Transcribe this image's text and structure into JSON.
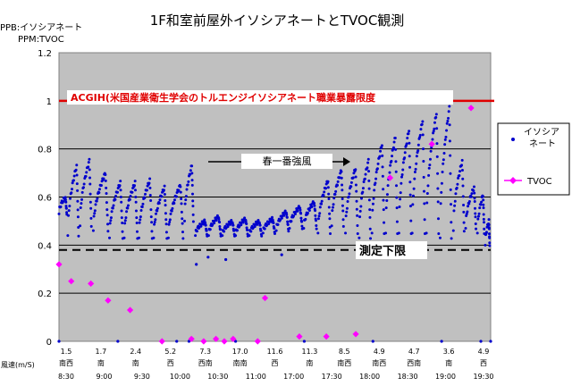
{
  "chart_data": {
    "type": "scatter",
    "title": "1F和室前屋外イソシアネートとTVOC観測",
    "unit_lines": [
      "PPB:イソシアネート",
      "PPM:TVOC"
    ],
    "xlabel": "風速(m/S)",
    "ylim": [
      0,
      1.2
    ],
    "y_ticks": [
      "0",
      "0.2",
      "0.4",
      "0.6",
      "0.8",
      "1",
      "1.2"
    ],
    "grid": "horizontal",
    "legend_position": "right",
    "plot_color": "#c0c0c0",
    "wind_speed_labels": [
      "1.5",
      "1.7",
      "2.4",
      "5.2",
      "7.3",
      "17.0",
      "11.6",
      "11.3",
      "8.5",
      "4.9",
      "4.7",
      "3.6",
      "4.9"
    ],
    "wind_direction_labels": [
      "南西",
      "南",
      "南",
      "西",
      "西南",
      "南南",
      "西",
      "南",
      "南西",
      "南西",
      "西南",
      "南",
      "西"
    ],
    "time_labels": [
      "8:30",
      "9:00",
      "9:30",
      "10:00",
      "10:30",
      "11:00",
      "17:00",
      "17:30",
      "18:00",
      "18:30",
      "19:00",
      "19:30"
    ],
    "thresholds": [
      {
        "label": "ACGIH(米国産業衛生学会のトルエンジイソシアネート職業暴露限度",
        "value": 1.0,
        "color": "#e00000"
      },
      {
        "label": "測定下限",
        "value": 0.38,
        "color": "#000000"
      }
    ],
    "annotation": "春一番強風",
    "series": [
      {
        "name": "イソシアネート",
        "color": "#0000cc",
        "marker": "dot",
        "cycles": [
          {
            "x": [
              0.0,
              1.6
            ],
            "start": 0.53,
            "peak": 0.6
          },
          {
            "x": [
              1.8,
              4.0
            ],
            "start": 0.44,
            "peak": 0.73
          },
          {
            "x": [
              4.3,
              6.6
            ],
            "start": 0.48,
            "peak": 0.75
          },
          {
            "x": [
              7.0,
              10.0
            ],
            "start": 0.46,
            "peak": 0.7
          },
          {
            "x": [
              10.3,
              13.0
            ],
            "start": 0.43,
            "peak": 0.66
          },
          {
            "x": [
              13.3,
              16.0
            ],
            "start": 0.43,
            "peak": 0.66
          },
          {
            "x": [
              16.3,
              19.0
            ],
            "start": 0.43,
            "peak": 0.67
          },
          {
            "x": [
              19.3,
              22.0
            ],
            "start": 0.43,
            "peak": 0.64
          },
          {
            "x": [
              22.3,
              25.3
            ],
            "start": 0.43,
            "peak": 0.65
          },
          {
            "x": [
              25.6,
              27.4
            ],
            "start": 0.5,
            "peak": 0.73
          },
          {
            "x": [
              27.8,
              30.2
            ],
            "start": 0.44,
            "peak": 0.5
          },
          {
            "x": [
              30.5,
              33.0
            ],
            "start": 0.44,
            "peak": 0.52
          },
          {
            "x": [
              33.3,
              35.8
            ],
            "start": 0.44,
            "peak": 0.5
          },
          {
            "x": [
              36.0,
              38.5
            ],
            "start": 0.44,
            "peak": 0.51
          },
          {
            "x": [
              38.8,
              41.3
            ],
            "start": 0.44,
            "peak": 0.5
          },
          {
            "x": [
              41.6,
              44.0
            ],
            "start": 0.45,
            "peak": 0.51
          },
          {
            "x": [
              44.3,
              46.8
            ],
            "start": 0.46,
            "peak": 0.54
          },
          {
            "x": [
              47.0,
              49.6
            ],
            "start": 0.47,
            "peak": 0.56
          },
          {
            "x": [
              49.9,
              52.5
            ],
            "start": 0.47,
            "peak": 0.58
          },
          {
            "x": [
              52.8,
              55.3
            ],
            "start": 0.45,
            "peak": 0.67
          },
          {
            "x": [
              55.6,
              58.0
            ],
            "start": 0.48,
            "peak": 0.71
          },
          {
            "x": [
              58.4,
              60.9
            ],
            "start": 0.45,
            "peak": 0.72
          },
          {
            "x": [
              61.2,
              63.5
            ],
            "start": 0.43,
            "peak": 0.75
          },
          {
            "x": [
              63.8,
              66.3
            ],
            "start": 0.45,
            "peak": 0.82
          },
          {
            "x": [
              66.6,
              69.0
            ],
            "start": 0.45,
            "peak": 0.85
          },
          {
            "x": [
              69.3,
              71.8
            ],
            "start": 0.45,
            "peak": 0.88
          },
          {
            "x": [
              72.0,
              74.6
            ],
            "start": 0.45,
            "peak": 0.92
          },
          {
            "x": [
              74.9,
              77.4
            ],
            "start": 0.45,
            "peak": 0.95
          },
          {
            "x": [
              77.7,
              80.0
            ],
            "start": 0.43,
            "peak": 0.97
          },
          {
            "x": [
              80.4,
              82.6
            ],
            "start": 0.46,
            "peak": 0.75
          },
          {
            "x": [
              82.9,
              85.0
            ],
            "start": 0.47,
            "peak": 0.64
          },
          {
            "x": [
              85.3,
              86.7
            ],
            "start": 0.45,
            "peak": 0.61
          },
          {
            "x": [
              86.9,
              87.8
            ],
            "start": 0.4,
            "peak": 0.5
          }
        ],
        "extra_points": [
          {
            "x": 28.0,
            "y": 0.32
          },
          {
            "x": 30.4,
            "y": 0.35
          },
          {
            "x": 34.0,
            "y": 0.34
          },
          {
            "x": 45.4,
            "y": 0.36
          },
          {
            "x": 0.0,
            "y": 0.0
          },
          {
            "x": 12.0,
            "y": 0.0
          },
          {
            "x": 24.0,
            "y": 0.0
          },
          {
            "x": 26.5,
            "y": 0.0
          },
          {
            "x": 36.0,
            "y": 0.0
          },
          {
            "x": 50.0,
            "y": 0.0
          },
          {
            "x": 64.0,
            "y": 0.0
          },
          {
            "x": 78.0,
            "y": 0.0
          },
          {
            "x": 86.0,
            "y": 0.0
          },
          {
            "x": 88.0,
            "y": 0.0
          }
        ]
      },
      {
        "name": "TVOC",
        "color": "#ff00ff",
        "marker": "diamond",
        "points": [
          {
            "x": 0.0,
            "y": 0.32
          },
          {
            "x": 2.5,
            "y": 0.25
          },
          {
            "x": 6.5,
            "y": 0.24
          },
          {
            "x": 10.0,
            "y": 0.17
          },
          {
            "x": 14.5,
            "y": 0.13
          },
          {
            "x": 21.0,
            "y": 0.0
          },
          {
            "x": 27.0,
            "y": 0.01
          },
          {
            "x": 29.5,
            "y": 0.0
          },
          {
            "x": 32.0,
            "y": 0.01
          },
          {
            "x": 33.7,
            "y": 0.0
          },
          {
            "x": 35.5,
            "y": 0.01
          },
          {
            "x": 40.5,
            "y": 0.0
          },
          {
            "x": 42.0,
            "y": 0.18
          },
          {
            "x": 49.0,
            "y": 0.02
          },
          {
            "x": 54.5,
            "y": 0.02
          },
          {
            "x": 60.5,
            "y": 0.03
          },
          {
            "x": 67.5,
            "y": 0.68
          },
          {
            "x": 76.0,
            "y": 0.82
          },
          {
            "x": 84.0,
            "y": 0.97
          }
        ]
      }
    ]
  }
}
